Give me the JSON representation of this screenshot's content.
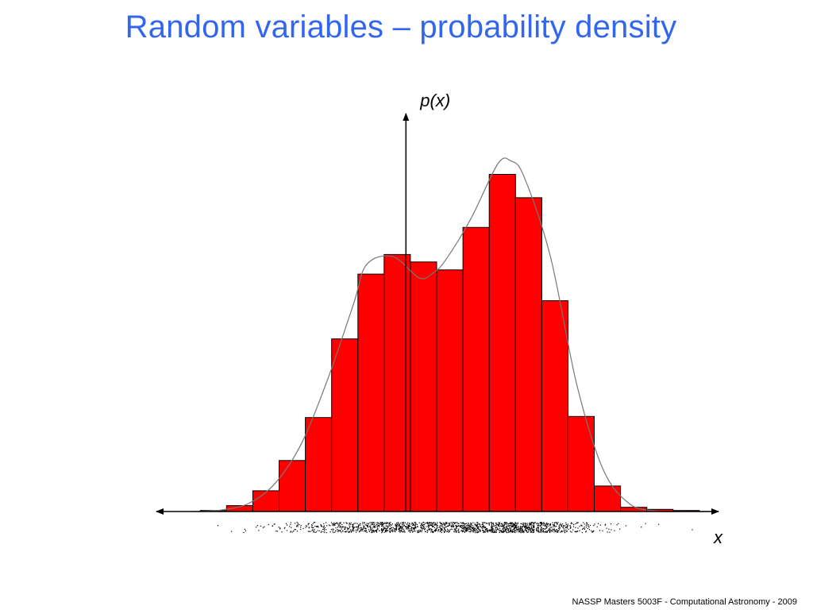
{
  "slide": {
    "title": "Random variables – probability density",
    "footer": "NASSP Masters 5003F - Computational Astronomy - 2009"
  },
  "colors": {
    "title": "#3366ee",
    "bars": "#ff0000",
    "bar_edge": "#000000",
    "curve": "#777777",
    "axes": "#000000"
  },
  "chart_data": {
    "type": "bar",
    "title": "",
    "xlabel": "x",
    "ylabel": "p(x)",
    "grid": false,
    "legend": "none",
    "bin_edges": [
      -7.83,
      -6.83,
      -5.83,
      -4.83,
      -3.83,
      -2.83,
      -1.83,
      -0.83,
      0.17,
      1.17,
      2.17,
      3.17,
      4.17,
      5.17,
      6.17,
      7.17,
      8.17,
      9.17,
      10.17,
      11.17
    ],
    "values": [
      0.2,
      1.1,
      3.9,
      9.6,
      17.7,
      32.5,
      44.7,
      48.4,
      47.0,
      45.5,
      53.5,
      63.5,
      59.1,
      39.7,
      17.9,
      4.8,
      0.8,
      0.4,
      0.2
    ],
    "curve": {
      "name": "",
      "x": [
        -8.0,
        -7.0,
        -6.0,
        -5.0,
        -4.0,
        -3.0,
        -2.0,
        -1.5,
        -0.5,
        0.5,
        1.0,
        1.5,
        2.5,
        3.5,
        4.0,
        4.5,
        5.5,
        6.5,
        7.5,
        8.5,
        9.5,
        10.5,
        11.5
      ],
      "y": [
        0.0,
        0.3,
        1.5,
        5.2,
        12.6,
        24.6,
        39.0,
        46.5,
        48.0,
        44.0,
        44.8,
        47.3,
        55.4,
        65.5,
        66.0,
        63.0,
        48.0,
        24.0,
        8.0,
        1.5,
        0.1,
        0.0,
        0.0
      ]
    },
    "xlim": [
      -9.5,
      11.9
    ],
    "ylim": [
      0,
      70
    ]
  }
}
